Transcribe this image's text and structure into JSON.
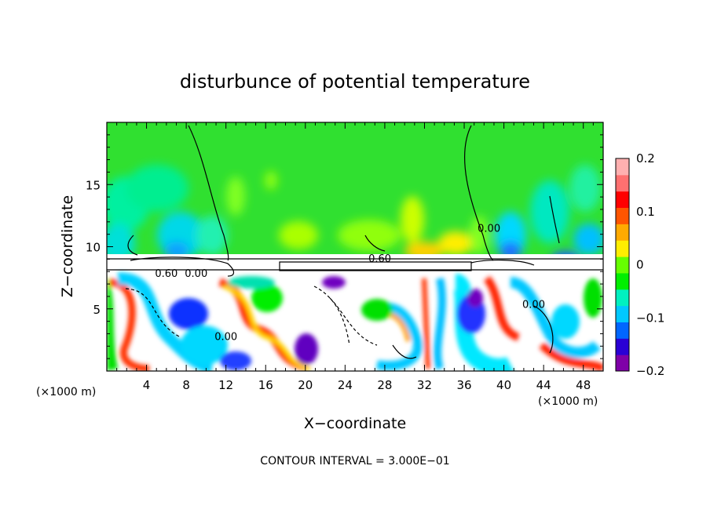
{
  "chart_data": {
    "type": "heatmap",
    "title": "disturbunce of potential temperature",
    "xlabel": "X−coordinate",
    "ylabel": "Z−coordinate",
    "x_unit_left": "(×1000 m)",
    "x_unit_right": "(×1000 m)",
    "xlim": [
      0,
      50
    ],
    "ylim": [
      0,
      20
    ],
    "x_ticks": [
      {
        "value": 4,
        "label": "4"
      },
      {
        "value": 8,
        "label": "8"
      },
      {
        "value": 12,
        "label": "12"
      },
      {
        "value": 16,
        "label": "16"
      },
      {
        "value": 20,
        "label": "20"
      },
      {
        "value": 24,
        "label": "24"
      },
      {
        "value": 28,
        "label": "28"
      },
      {
        "value": 32,
        "label": "32"
      },
      {
        "value": 36,
        "label": "36"
      },
      {
        "value": 40,
        "label": "40"
      },
      {
        "value": 44,
        "label": "44"
      },
      {
        "value": 48,
        "label": "48"
      }
    ],
    "y_ticks": [
      {
        "value": 5,
        "label": "5"
      },
      {
        "value": 10,
        "label": "10"
      },
      {
        "value": 15,
        "label": "15"
      }
    ],
    "colorbar": {
      "vmin": -0.2,
      "vmax": 0.2,
      "ticks": [
        {
          "value": 0.2,
          "label": "0.2"
        },
        {
          "value": 0.1,
          "label": "0.1"
        },
        {
          "value": 0,
          "label": "0"
        },
        {
          "value": -0.1,
          "label": "−0.1"
        },
        {
          "value": -0.2,
          "label": "−0.2"
        }
      ],
      "colors": [
        "#7f00a8",
        "#2a00d5",
        "#0066ff",
        "#00c8ff",
        "#00f0c0",
        "#00ee00",
        "#66ff00",
        "#ffee00",
        "#ffaa00",
        "#ff5500",
        "#ff0000",
        "#ff7070",
        "#ffb0b0"
      ]
    },
    "contour_labels": [
      {
        "x": 27.5,
        "z": 9.1,
        "label": "0.60"
      },
      {
        "x": 6.0,
        "z": 7.9,
        "label": "0.60"
      },
      {
        "x": 9.0,
        "z": 7.9,
        "label": "0.00"
      },
      {
        "x": 38.5,
        "z": 11.5,
        "label": "0.00"
      },
      {
        "x": 12.0,
        "z": 2.8,
        "label": "0.00"
      },
      {
        "x": 43.0,
        "z": 5.4,
        "label": "0.00"
      }
    ],
    "contour_interval_text": "CONTOUR INTERVAL = 3.000E−01"
  },
  "colors": {
    "background_green": "#33e02a",
    "field_white": "#ffffff"
  }
}
